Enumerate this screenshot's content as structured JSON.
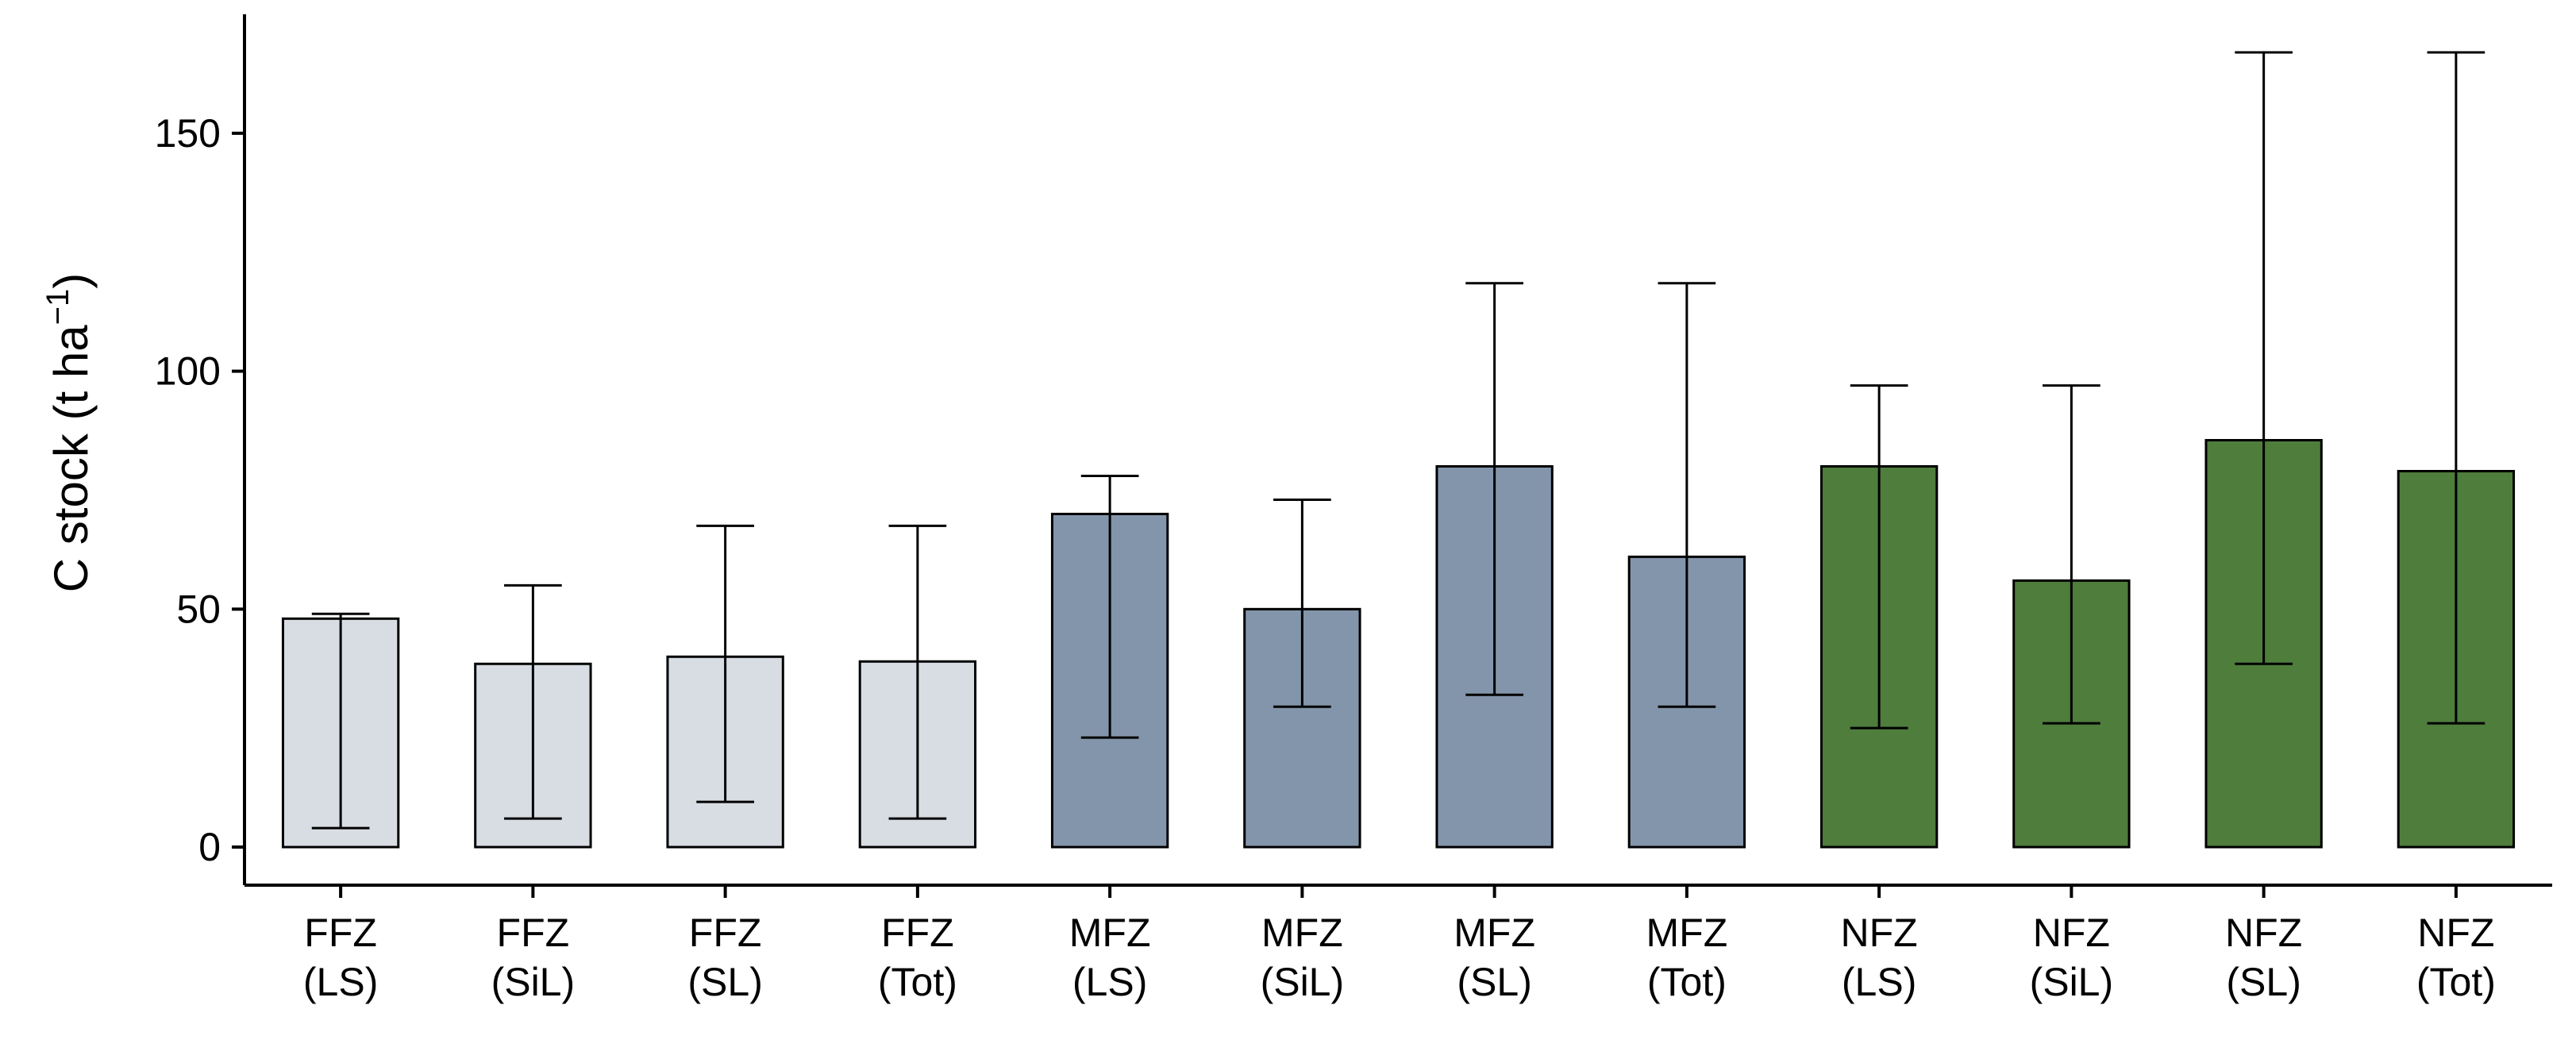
{
  "chart_data": {
    "type": "bar",
    "title": "",
    "xlabel": "",
    "ylabel": "C stock (t ha",
    "ylabel_superscript": "−1",
    "ylabel_close": ")",
    "ylim": [
      -8,
      175
    ],
    "yticks": [
      0,
      50,
      100,
      150
    ],
    "categories": [
      {
        "line1": "FFZ",
        "line2": "(LS)"
      },
      {
        "line1": "FFZ",
        "line2": "(SiL)"
      },
      {
        "line1": "FFZ",
        "line2": "(SL)"
      },
      {
        "line1": "FFZ",
        "line2": "(Tot)"
      },
      {
        "line1": "MFZ",
        "line2": "(LS)"
      },
      {
        "line1": "MFZ",
        "line2": "(SiL)"
      },
      {
        "line1": "MFZ",
        "line2": "(SL)"
      },
      {
        "line1": "MFZ",
        "line2": "(Tot)"
      },
      {
        "line1": "NFZ",
        "line2": "(LS)"
      },
      {
        "line1": "NFZ",
        "line2": "(SiL)"
      },
      {
        "line1": "NFZ",
        "line2": "(SL)"
      },
      {
        "line1": "NFZ",
        "line2": "(Tot)"
      }
    ],
    "values": [
      48,
      38.5,
      40,
      39,
      70,
      50,
      80,
      61,
      80,
      56,
      85.5,
      79
    ],
    "error_low": [
      4,
      6,
      9.5,
      6,
      23,
      29.5,
      32,
      29.5,
      25,
      26,
      38.5,
      26
    ],
    "error_high": [
      49,
      55,
      67.5,
      67.5,
      78,
      73,
      118.5,
      118.5,
      97,
      97,
      167,
      167
    ],
    "group_colors": {
      "FFZ": "#d8dde4",
      "MFZ": "#8395ab",
      "NFZ": "#4e7d3c"
    },
    "bar_groups": [
      "FFZ",
      "FFZ",
      "FFZ",
      "FFZ",
      "MFZ",
      "MFZ",
      "MFZ",
      "MFZ",
      "NFZ",
      "NFZ",
      "NFZ",
      "NFZ"
    ]
  }
}
